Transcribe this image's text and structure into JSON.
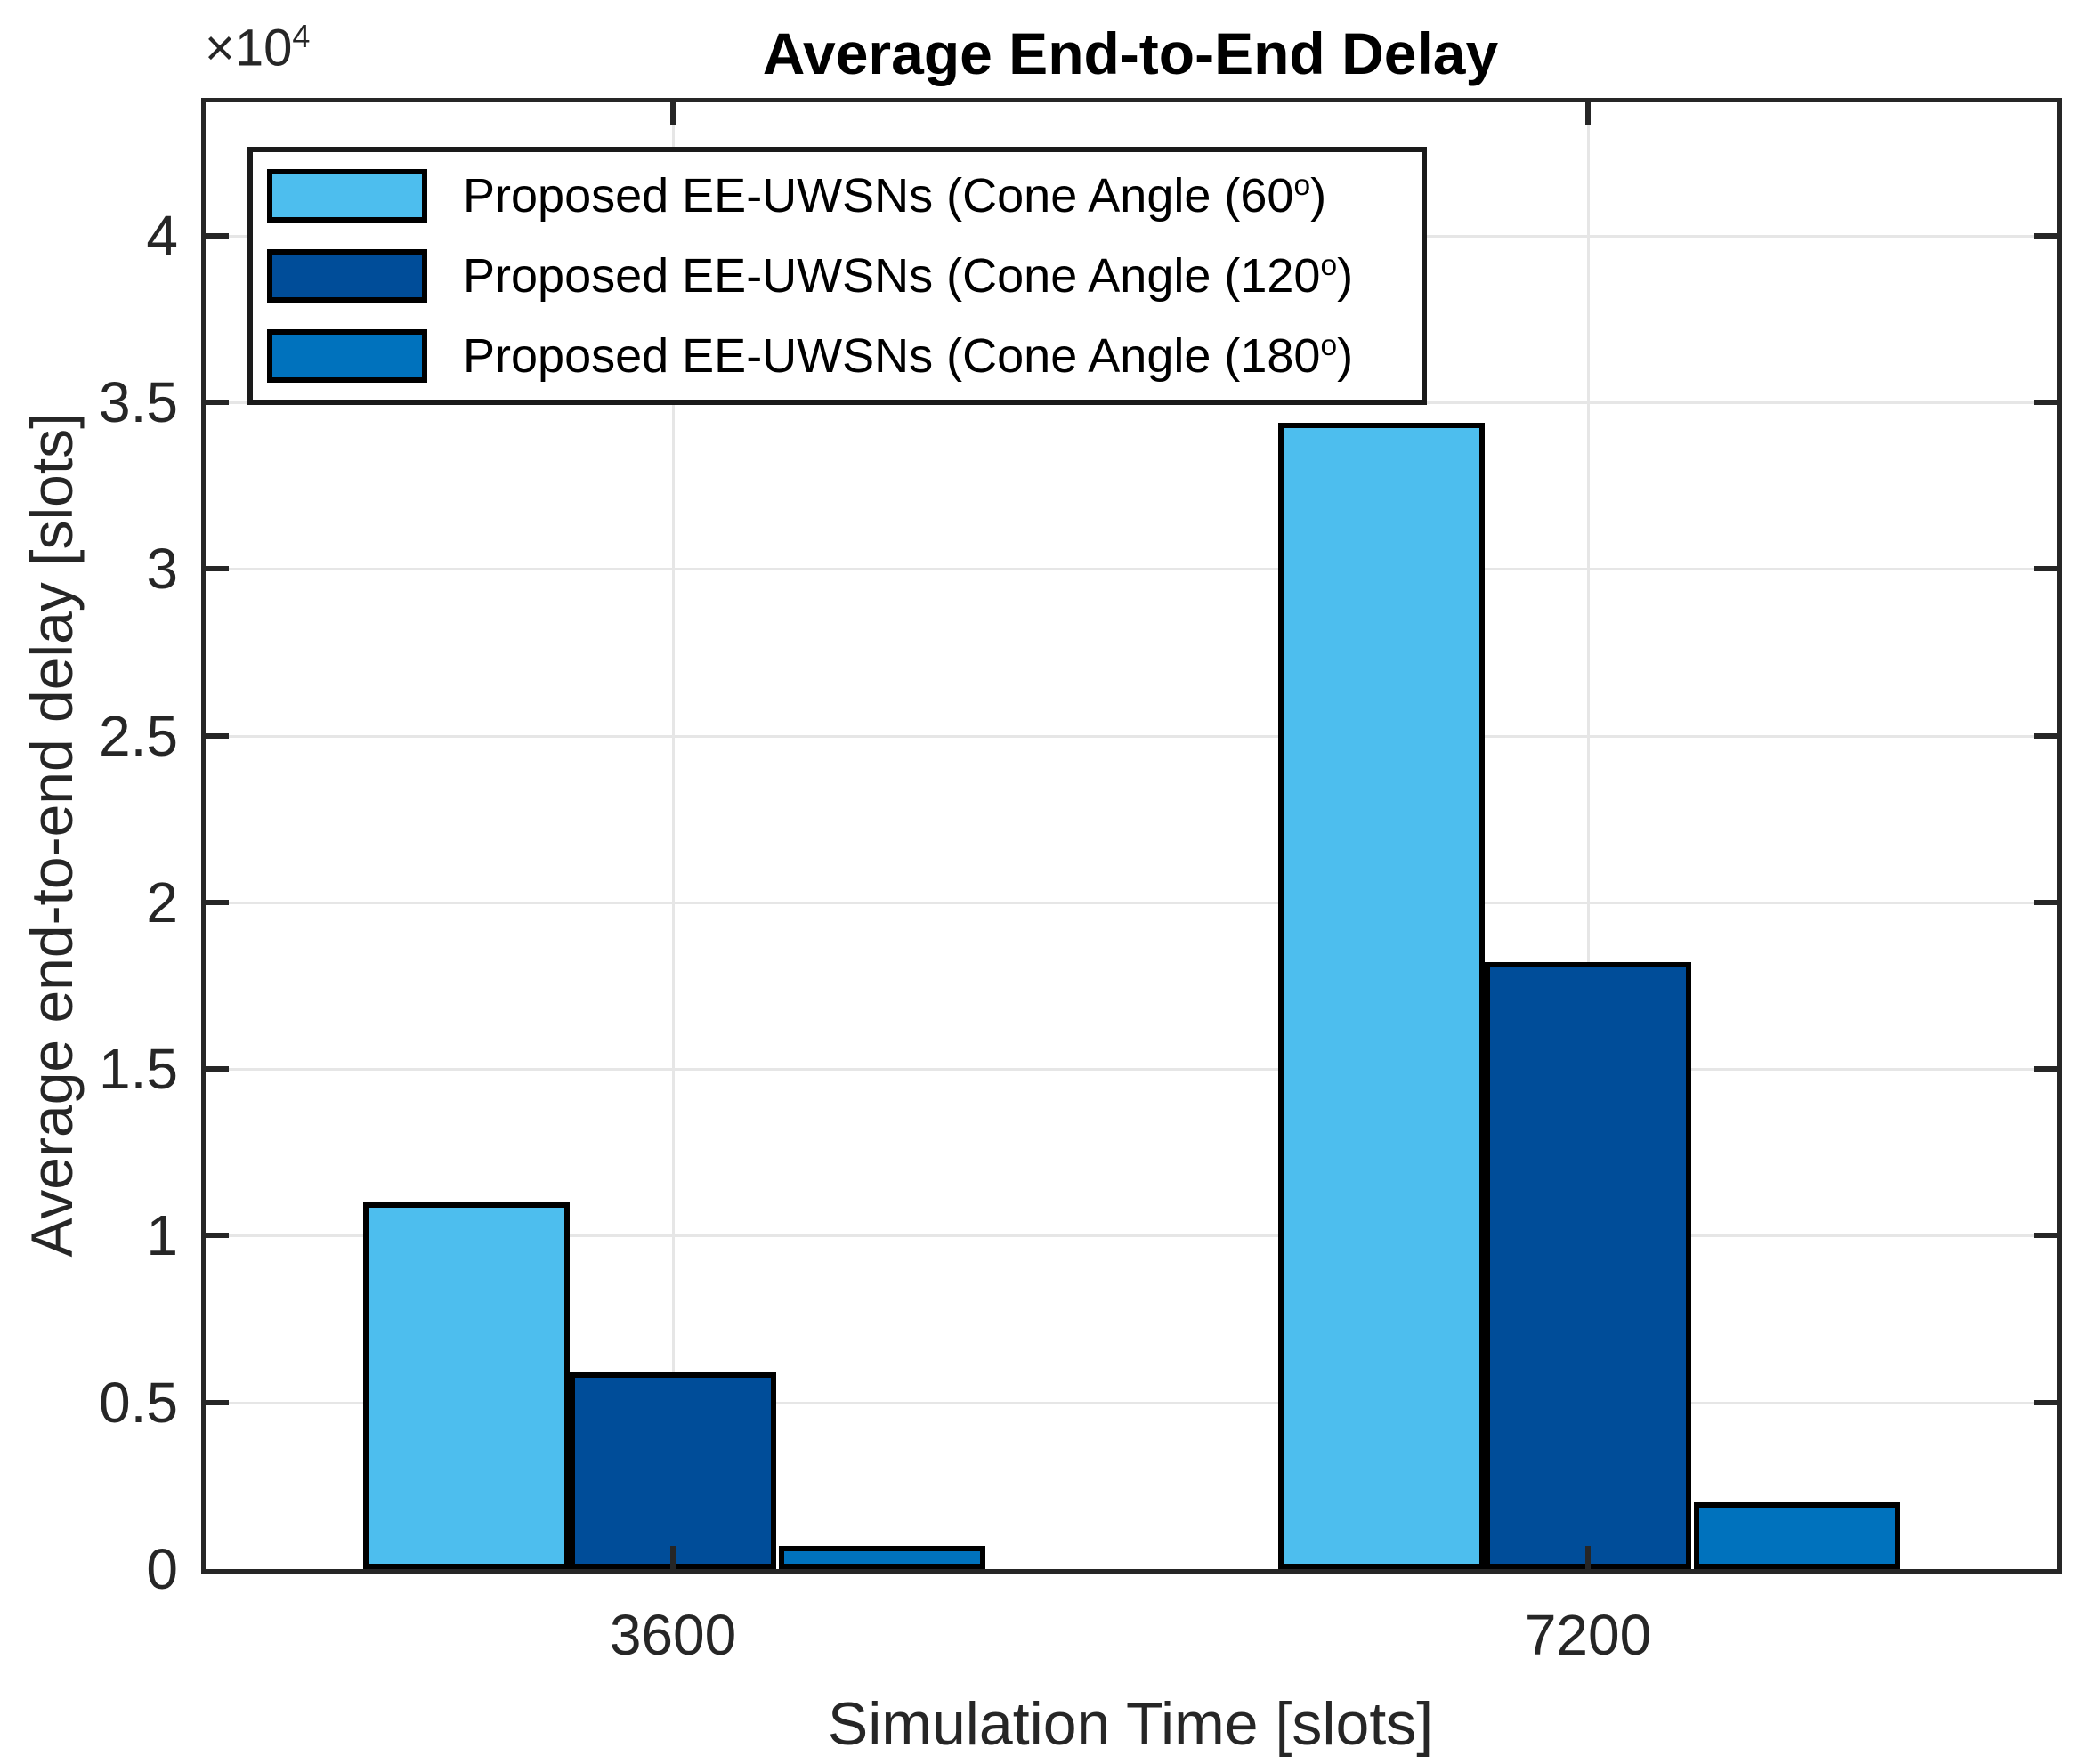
{
  "title": "Average End-to-End Delay",
  "axes": {
    "y_offset_base": "×10",
    "y_offset_exp": "4",
    "ylabel": "Average end-to-end delay [slots]",
    "xlabel": "Simulation Time [slots]",
    "y_ticks": [
      "0",
      "0.5",
      "1",
      "1.5",
      "2",
      "2.5",
      "3",
      "3.5",
      "4"
    ],
    "x_ticks": [
      "3600",
      "7200"
    ]
  },
  "legend": {
    "items": [
      {
        "prefix": "Proposed EE-UWSNs (Cone Angle (60",
        "deg": "o",
        "close": ")",
        "color": "#4DBEEE"
      },
      {
        "prefix": "Proposed EE-UWSNs (Cone Angle (120",
        "deg": "o",
        "close": ")",
        "color": "#004D99"
      },
      {
        "prefix": "Proposed EE-UWSNs (Cone Angle (180",
        "deg": "o",
        "close": ")",
        "color": "#0072BD"
      }
    ]
  },
  "chart_data": {
    "type": "bar",
    "title": "Average End-to-End Delay",
    "xlabel": "Simulation Time [slots]",
    "ylabel": "Average end-to-end delay [slots]",
    "categories": [
      "3600",
      "7200"
    ],
    "series": [
      {
        "name": "Proposed EE-UWSNs (Cone Angle (60°)",
        "color": "#4DBEEE",
        "values": [
          11000,
          34400
        ]
      },
      {
        "name": "Proposed EE-UWSNs (Cone Angle (120°)",
        "color": "#004D99",
        "values": [
          5900,
          18200
        ]
      },
      {
        "name": "Proposed EE-UWSNs (Cone Angle (180°)",
        "color": "#0072BD",
        "values": [
          700,
          2000
        ]
      }
    ],
    "ylim": [
      0,
      44000
    ],
    "y_tick_step": 5000,
    "y_axis_multiplier": "1e4",
    "grid": true,
    "legend_position": "top-left-inside"
  },
  "colors": {
    "axis": "#262626",
    "grid": "#E6E6E6",
    "bar_edge": "#000000",
    "background": "#FFFFFF"
  }
}
